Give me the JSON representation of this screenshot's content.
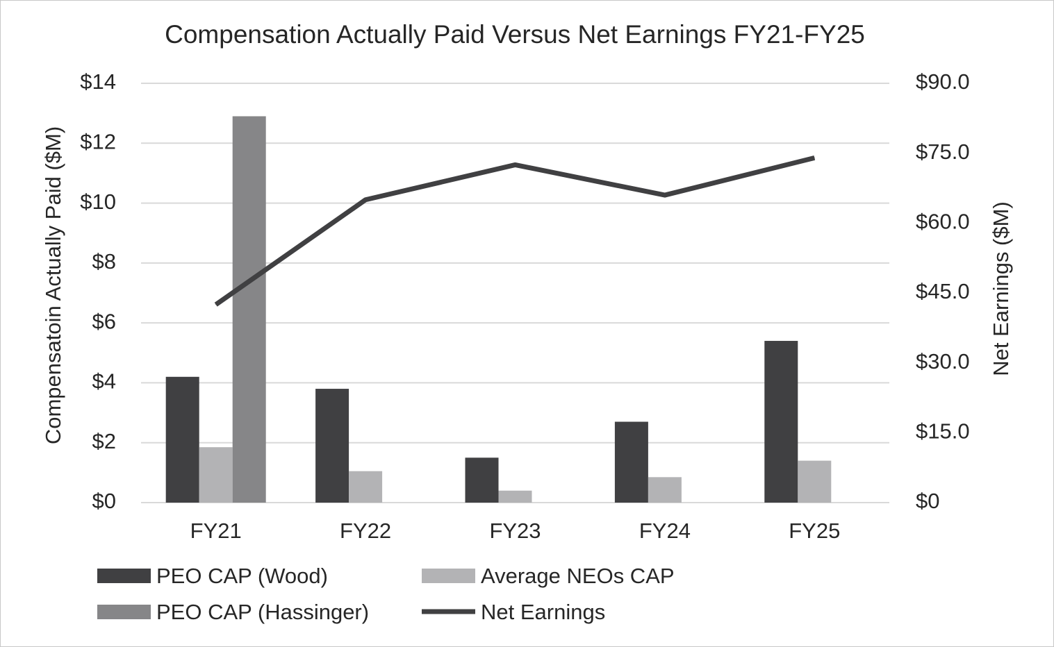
{
  "chart_data": {
    "type": "bar",
    "title": "Compensation Actually Paid Versus Net Earnings FY21-FY25",
    "categories": [
      "FY21",
      "FY22",
      "FY23",
      "FY24",
      "FY25"
    ],
    "ylabel": "Compensatoin Actually Paid ($M)",
    "ylim": [
      0,
      14
    ],
    "yticks": [
      0,
      2,
      4,
      6,
      8,
      10,
      12,
      14
    ],
    "ytick_labels": [
      "$0",
      "$2",
      "$4",
      "$6",
      "$8",
      "$10",
      "$12",
      "$14"
    ],
    "y2label": "Net Earnings ($M)",
    "y2lim": [
      0,
      90
    ],
    "y2ticks": [
      0,
      15,
      30,
      45,
      60,
      75,
      90
    ],
    "y2tick_labels": [
      "$0",
      "$15.0",
      "$30.0",
      "$45.0",
      "$60.0",
      "$75.0",
      "$90.0"
    ],
    "grid": true,
    "legend_position": "bottom",
    "series": [
      {
        "name": "PEO CAP (Wood)",
        "type": "bar",
        "axis": "left",
        "color": "#404042",
        "values": [
          4.2,
          3.8,
          1.5,
          2.7,
          5.4
        ]
      },
      {
        "name": "Average NEOs CAP",
        "type": "bar",
        "axis": "left",
        "color": "#b3b3b5",
        "values": [
          1.85,
          1.05,
          0.4,
          0.85,
          1.4
        ]
      },
      {
        "name": "PEO CAP (Hassinger)",
        "type": "bar",
        "axis": "left",
        "color": "#868688",
        "values": [
          12.9,
          null,
          null,
          null,
          null
        ]
      },
      {
        "name": "Net Earnings",
        "type": "line",
        "axis": "right",
        "color": "#404042",
        "values": [
          42.5,
          65.0,
          72.5,
          66.0,
          74.0
        ]
      }
    ]
  }
}
